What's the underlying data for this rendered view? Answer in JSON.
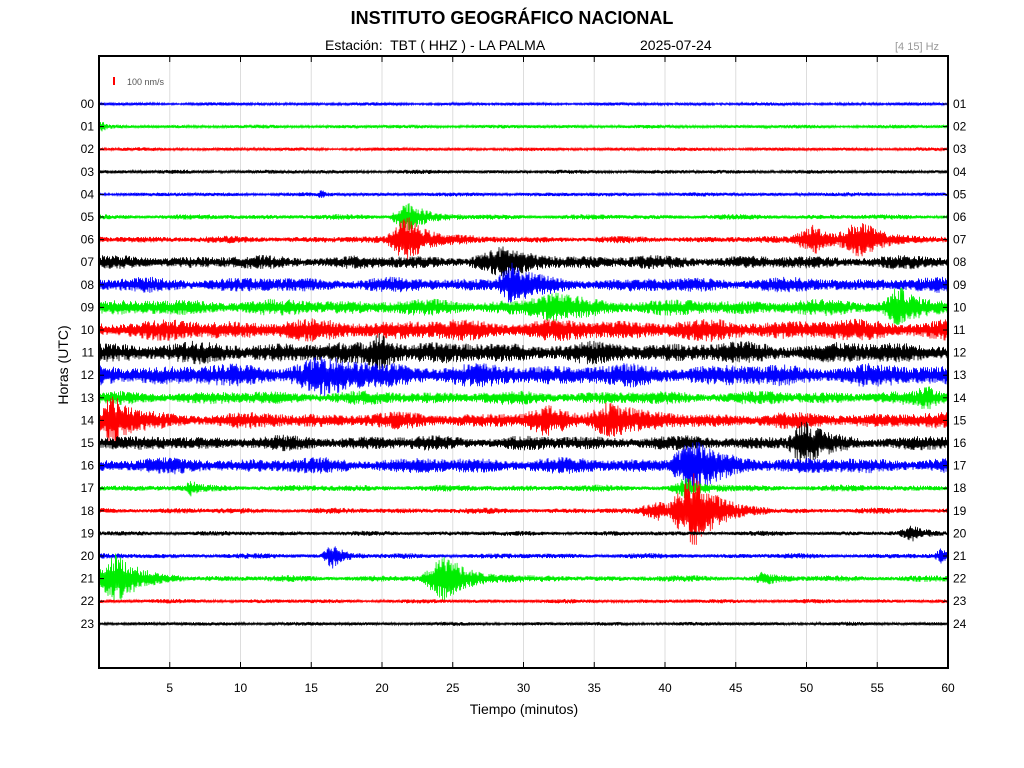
{
  "header": {
    "title": "INSTITUTO GEOGRÁFICO NACIONAL",
    "station": "Estación:  TBT ( HHZ ) - LA PALMA",
    "date": "2025-07-24",
    "filter": "[4 15] Hz"
  },
  "chart_data": {
    "type": "line",
    "title": "INSTITUTO GEOGRÁFICO NACIONAL",
    "xlabel": "Tiempo (minutos)",
    "ylabel": "Horas (UTC)",
    "xlim": [
      0,
      60
    ],
    "x_ticks": [
      "5",
      "10",
      "15",
      "20",
      "25",
      "30",
      "35",
      "40",
      "45",
      "50",
      "55",
      "60"
    ],
    "y_ticks_left": [
      "00",
      "01",
      "02",
      "03",
      "04",
      "05",
      "06",
      "07",
      "08",
      "09",
      "10",
      "11",
      "12",
      "13",
      "14",
      "15",
      "16",
      "17",
      "18",
      "19",
      "20",
      "21",
      "22",
      "23"
    ],
    "y_ticks_right": [
      "01",
      "02",
      "03",
      "04",
      "05",
      "06",
      "07",
      "08",
      "09",
      "10",
      "11",
      "12",
      "13",
      "14",
      "15",
      "16",
      "17",
      "18",
      "19",
      "20",
      "21",
      "22",
      "23",
      "24"
    ],
    "scale_label": "100 nm/s",
    "grid": "vertical",
    "color_cycle": [
      "#0000ff",
      "#00ee00",
      "#ff0000",
      "#000000"
    ],
    "traces": [
      {
        "hour": "00",
        "color": "#0000ff",
        "noise": 1.2,
        "events": []
      },
      {
        "hour": "01",
        "color": "#00ee00",
        "noise": 1.4,
        "events": [
          {
            "t": 0.2,
            "amp": 4,
            "dur": 0.3
          }
        ]
      },
      {
        "hour": "02",
        "color": "#ff0000",
        "noise": 1.3,
        "events": []
      },
      {
        "hour": "03",
        "color": "#000000",
        "noise": 1.5,
        "events": []
      },
      {
        "hour": "04",
        "color": "#0000ff",
        "noise": 1.5,
        "events": [
          {
            "t": 15.7,
            "amp": 3,
            "dur": 0.3
          }
        ]
      },
      {
        "hour": "05",
        "color": "#00ee00",
        "noise": 2.0,
        "events": [
          {
            "t": 21.8,
            "amp": 15,
            "dur": 1.3
          }
        ]
      },
      {
        "hour": "06",
        "color": "#ff0000",
        "noise": 2.6,
        "events": [
          {
            "t": 21.8,
            "amp": 22,
            "dur": 1.6
          },
          {
            "t": 50.5,
            "amp": 14,
            "dur": 1.6
          },
          {
            "t": 53.8,
            "amp": 16,
            "dur": 1.6
          }
        ]
      },
      {
        "hour": "07",
        "color": "#000000",
        "noise": 5,
        "events": [
          {
            "t": 28.5,
            "amp": 9,
            "dur": 2.5
          }
        ]
      },
      {
        "hour": "08",
        "color": "#0000ff",
        "noise": 5.5,
        "events": [
          {
            "t": 29.2,
            "amp": 18,
            "dur": 1.2
          }
        ]
      },
      {
        "hour": "09",
        "color": "#00ee00",
        "noise": 6,
        "events": [
          {
            "t": 32,
            "amp": 10,
            "dur": 2
          },
          {
            "t": 56.5,
            "amp": 16,
            "dur": 1.2
          }
        ]
      },
      {
        "hour": "10",
        "color": "#ff0000",
        "noise": 8,
        "events": []
      },
      {
        "hour": "11",
        "color": "#000000",
        "noise": 8,
        "events": [
          {
            "t": 19.8,
            "amp": 16,
            "dur": 1
          }
        ]
      },
      {
        "hour": "12",
        "color": "#0000ff",
        "noise": 8.5,
        "events": [
          {
            "t": 16,
            "amp": 10,
            "dur": 3
          }
        ]
      },
      {
        "hour": "13",
        "color": "#00ee00",
        "noise": 5,
        "events": [
          {
            "t": 58.5,
            "amp": 8,
            "dur": 0.8
          }
        ]
      },
      {
        "hour": "14",
        "color": "#ff0000",
        "noise": 6,
        "events": [
          {
            "t": 1,
            "amp": 22,
            "dur": 1.2
          },
          {
            "t": 36,
            "amp": 14,
            "dur": 1.8
          },
          {
            "t": 31.5,
            "amp": 9,
            "dur": 1.5
          }
        ]
      },
      {
        "hour": "15",
        "color": "#000000",
        "noise": 5.5,
        "events": [
          {
            "t": 49.8,
            "amp": 20,
            "dur": 1.2
          }
        ]
      },
      {
        "hour": "16",
        "color": "#0000ff",
        "noise": 6,
        "events": [
          {
            "t": 42,
            "amp": 22,
            "dur": 1.8
          }
        ]
      },
      {
        "hour": "17",
        "color": "#00ee00",
        "noise": 2.5,
        "events": [
          {
            "t": 6.5,
            "amp": 5,
            "dur": 0.5
          },
          {
            "t": 41.5,
            "amp": 8,
            "dur": 1.2
          }
        ]
      },
      {
        "hour": "18",
        "color": "#ff0000",
        "noise": 2.2,
        "events": [
          {
            "t": 42,
            "amp": 36,
            "dur": 1.8
          },
          {
            "t": 39.5,
            "amp": 8,
            "dur": 1.5
          }
        ]
      },
      {
        "hour": "19",
        "color": "#000000",
        "noise": 1.8,
        "events": [
          {
            "t": 57.5,
            "amp": 6,
            "dur": 1
          }
        ]
      },
      {
        "hour": "20",
        "color": "#0000ff",
        "noise": 2,
        "events": [
          {
            "t": 16.5,
            "amp": 11,
            "dur": 0.8
          },
          {
            "t": 59.5,
            "amp": 6,
            "dur": 0.5
          }
        ]
      },
      {
        "hour": "21",
        "color": "#00ee00",
        "noise": 2.4,
        "events": [
          {
            "t": 1.2,
            "amp": 24,
            "dur": 1.6
          },
          {
            "t": 24.5,
            "amp": 22,
            "dur": 1.8
          },
          {
            "t": 47,
            "amp": 5,
            "dur": 0.8
          }
        ]
      },
      {
        "hour": "22",
        "color": "#ff0000",
        "noise": 1.6,
        "events": []
      },
      {
        "hour": "23",
        "color": "#000000",
        "noise": 1.4,
        "events": []
      }
    ]
  }
}
